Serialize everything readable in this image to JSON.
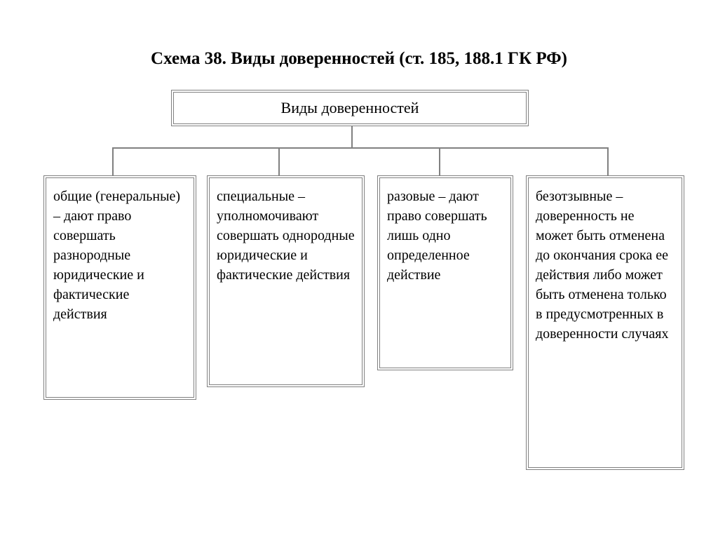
{
  "diagram": {
    "type": "tree",
    "title": "Схема 38. Виды доверенностей (ст. 185, 188.1 ГК РФ)",
    "root": {
      "label": "Виды доверенностей"
    },
    "children": [
      {
        "text": "общие (генеральные) – дают право совершать разнородные юридические и фактические действия"
      },
      {
        "text": "специальные – уполномочива­ют совершать однородные юридические и фактические действия"
      },
      {
        "text": "разовые – дают право совершать лишь одно определенное действие"
      },
      {
        "text": "безотзывные – доверенность не может быть отмене­на до окончания срока ее действия либо может быть отменена только в предусмотренных в доверенности случаях"
      }
    ],
    "styling": {
      "background_color": "#ffffff",
      "border_color": "#808080",
      "border_style": "double",
      "border_width": 4,
      "text_color": "#000000",
      "connector_color": "#808080",
      "title_fontsize": 25,
      "title_fontweight": "bold",
      "root_fontsize": 22,
      "child_fontsize": 20,
      "font_family": "Times New Roman"
    }
  }
}
